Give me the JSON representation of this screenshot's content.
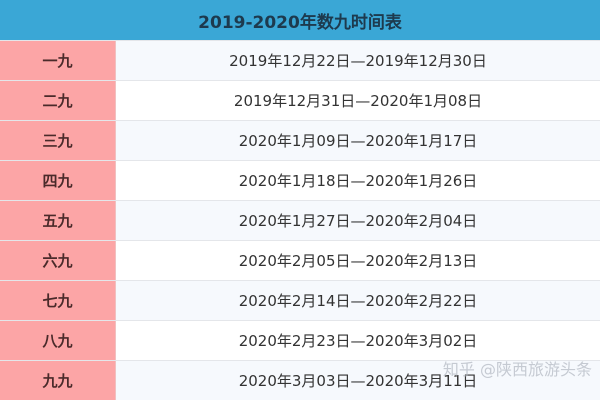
{
  "title": "2019-2020年数九时间表",
  "rows": [
    {
      "name": "一九",
      "range": "2019年12月22日—2019年12月30日"
    },
    {
      "name": "二九",
      "range": "2019年12月31日—2020年1月08日"
    },
    {
      "name": "三九",
      "range": "2020年1月09日—2020年1月17日"
    },
    {
      "name": "四九",
      "range": "2020年1月18日—2020年1月26日"
    },
    {
      "name": "五九",
      "range": "2020年1月27日—2020年2月04日"
    },
    {
      "name": "六九",
      "range": "2020年2月05日—2020年2月13日"
    },
    {
      "name": "七九",
      "range": "2020年2月14日—2020年2月22日"
    },
    {
      "name": "八九",
      "range": "2020年2月23日—2020年3月02日"
    },
    {
      "name": "九九",
      "range": "2020年3月03日—2020年3月11日"
    }
  ],
  "watermark": "知乎 @陕西旅游头条",
  "colors": {
    "header": "#3aa7d6",
    "name_column": "#fca5a6"
  }
}
